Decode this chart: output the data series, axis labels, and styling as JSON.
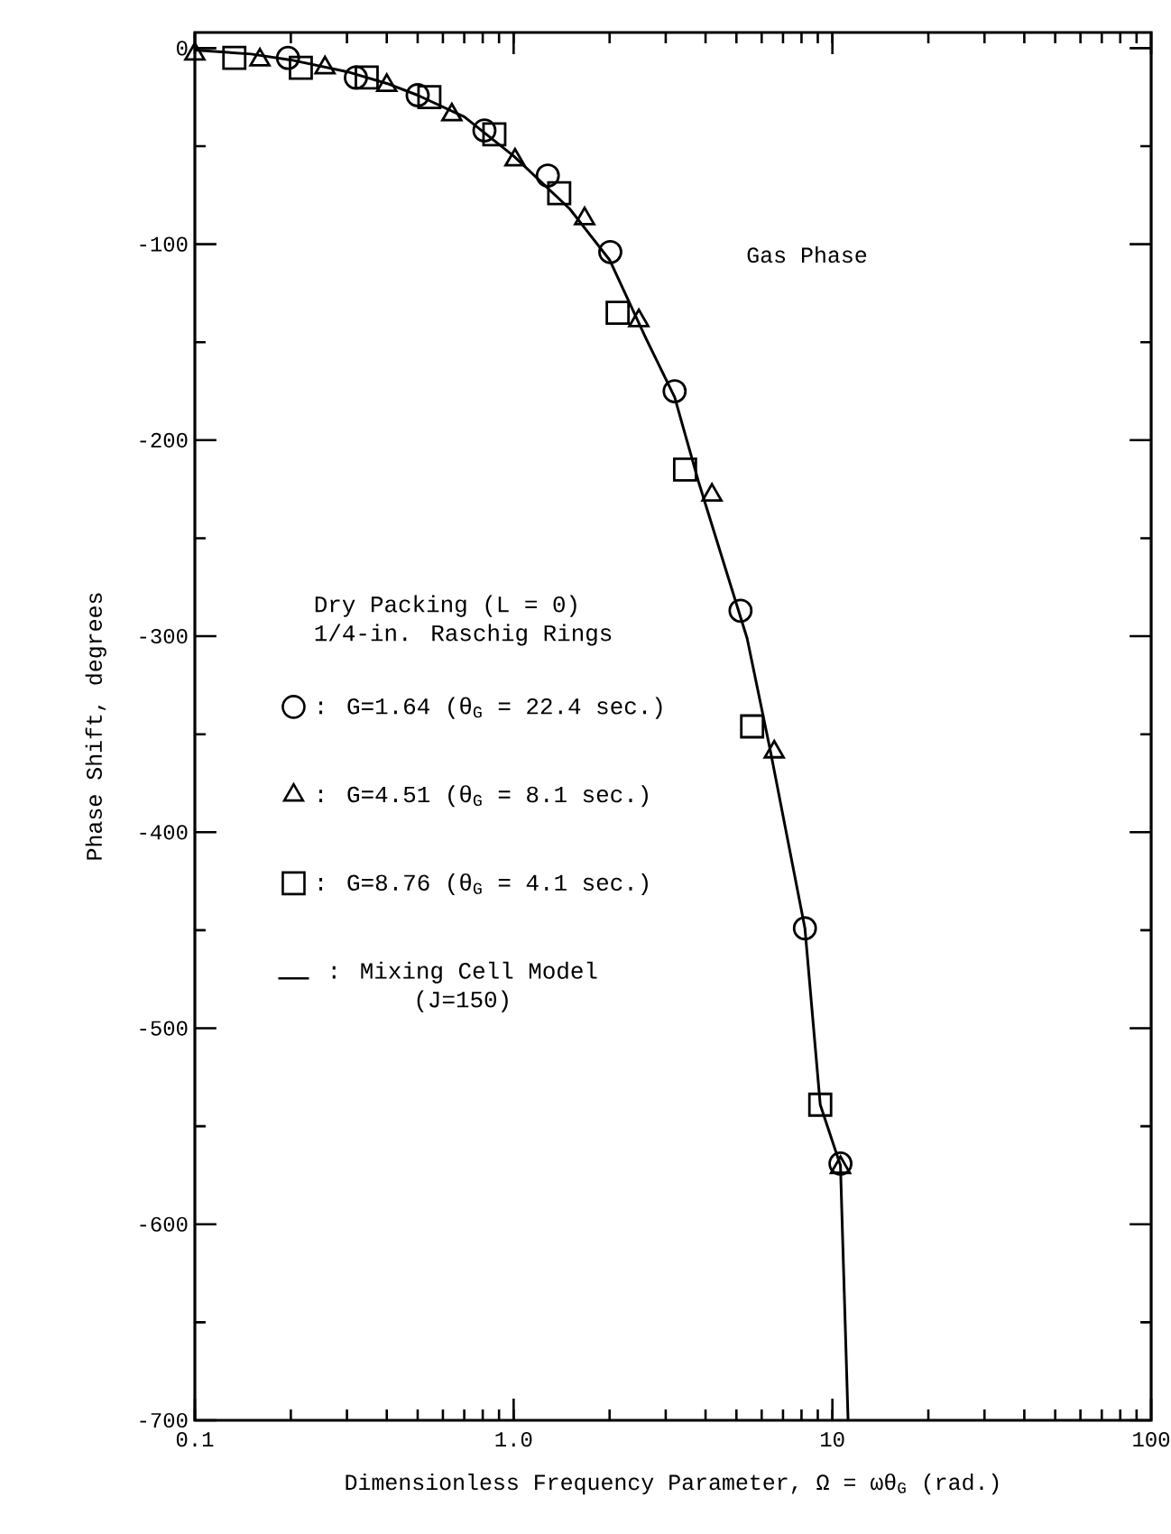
{
  "chart_data": {
    "type": "scatter",
    "xlabel": "Dimensionless Frequency Parameter, Ω = ωθ$_{G}$ (rad.)",
    "ylabel": "Phase Shift, degrees",
    "legend_title": "Dry Packing (L = 0) 1/4-in. Raschig Rings",
    "annotations": [
      "Gas Phase"
    ],
    "log": "x",
    "legend": "left",
    "xlim": [
      0.1,
      100
    ],
    "ylim": [
      -700,
      8
    ],
    "xticks": [
      0.1,
      {
        "value": 1,
        "label": "1.0"
      },
      10,
      100
    ],
    "yticks": [
      0,
      {
        "value": -50,
        "label": null
      },
      -100,
      {
        "value": -150,
        "label": null
      },
      -200,
      {
        "value": -250,
        "label": null
      },
      -300,
      {
        "value": -350,
        "label": null
      },
      -400,
      {
        "value": -450,
        "label": null
      },
      -500,
      {
        "value": -550,
        "label": null
      },
      -600,
      {
        "value": -650,
        "label": null
      },
      -700
    ],
    "series": [
      {
        "name": ": G=1.64 (θ$_{G}$ = 22.4 sec.)",
        "marker": "circle",
        "color": "#000000",
        "x": [
          0.196,
          0.32,
          0.5,
          0.81,
          1.28,
          2.01,
          3.2,
          5.15,
          8.2,
          10.6
        ],
        "values": [
          -5,
          -15,
          -24,
          -42,
          -65,
          -104,
          -175,
          -287,
          -449,
          -569
        ]
      },
      {
        "name": ": G=4.51 (θ$_{G}$ = 8.1 sec.)",
        "marker": "triangle",
        "color": "#000000",
        "x": [
          0.1,
          0.16,
          0.256,
          0.4,
          0.64,
          1.01,
          1.67,
          2.47,
          4.19,
          6.57,
          10.6
        ],
        "values": [
          -3,
          -6,
          -10,
          -19,
          -34,
          -57,
          -87,
          -139,
          -228,
          -359,
          -571
        ]
      },
      {
        "name": ": G=8.76 (θ$_{G}$ = 4.1 sec.)",
        "marker": "square",
        "color": "#000000",
        "x": [
          0.133,
          0.215,
          0.346,
          0.544,
          0.87,
          1.39,
          2.12,
          3.45,
          5.6,
          9.16
        ],
        "values": [
          -5,
          -10,
          -15,
          -25,
          -44,
          -74,
          -135,
          -215,
          -346,
          -539
        ]
      },
      {
        "name": ": Mixing Cell Model (J=150)",
        "type": "line",
        "marker": "none",
        "line_style": "solid",
        "color": "#000000",
        "x": [
          0.1,
          0.15,
          0.2,
          0.3,
          0.4,
          0.5,
          0.7,
          1.0,
          1.5,
          2.0,
          2.6,
          3.2,
          3.8,
          5.4,
          6.4,
          8.2,
          9.16,
          10.6,
          11.2
        ],
        "values": [
          -1,
          -3,
          -6,
          -12,
          -18,
          -24,
          -35,
          -55,
          -82,
          -108,
          -148,
          -178,
          -221,
          -301,
          -359,
          -449,
          -539,
          -570,
          -700
        ]
      }
    ]
  }
}
